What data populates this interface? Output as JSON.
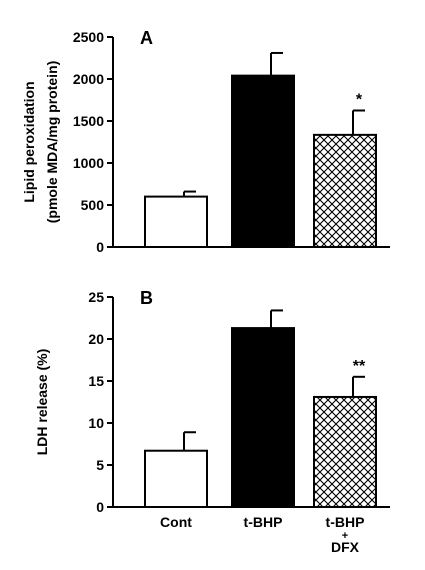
{
  "chart_data": [
    {
      "type": "bar",
      "panel_label": "A",
      "ylabel": [
        "Lipid peroxidation",
        "(pmole MDA/mg protein)"
      ],
      "ylim": [
        0,
        2500
      ],
      "yticks": [
        0,
        500,
        1000,
        1500,
        2000,
        2500
      ],
      "categories": [
        "Cont",
        "t-BHP",
        "t-BHP\n+\nDFX"
      ],
      "values": [
        600,
        2040,
        1335
      ],
      "errors": [
        60,
        270,
        290
      ],
      "annotations": [
        "",
        "",
        "*"
      ],
      "fills": [
        "white",
        "black",
        "crosshatch"
      ]
    },
    {
      "type": "bar",
      "panel_label": "B",
      "ylabel": [
        "LDH release (%)"
      ],
      "ylim": [
        0,
        25
      ],
      "yticks": [
        0,
        5,
        10,
        15,
        20,
        25
      ],
      "categories": [
        "Cont",
        "t-BHP",
        "t-BHP\n+\nDFX"
      ],
      "values": [
        6.7,
        21.3,
        13.1
      ],
      "errors": [
        2.2,
        2.1,
        2.4
      ],
      "annotations": [
        "",
        "",
        "**"
      ],
      "fills": [
        "white",
        "black",
        "crosshatch"
      ]
    }
  ],
  "x_category_labels": [
    [
      "Cont"
    ],
    [
      "t-BHP"
    ],
    [
      "t-BHP",
      "+",
      "DFX"
    ]
  ],
  "colors": {
    "ink": "#000000",
    "paper": "#ffffff"
  }
}
